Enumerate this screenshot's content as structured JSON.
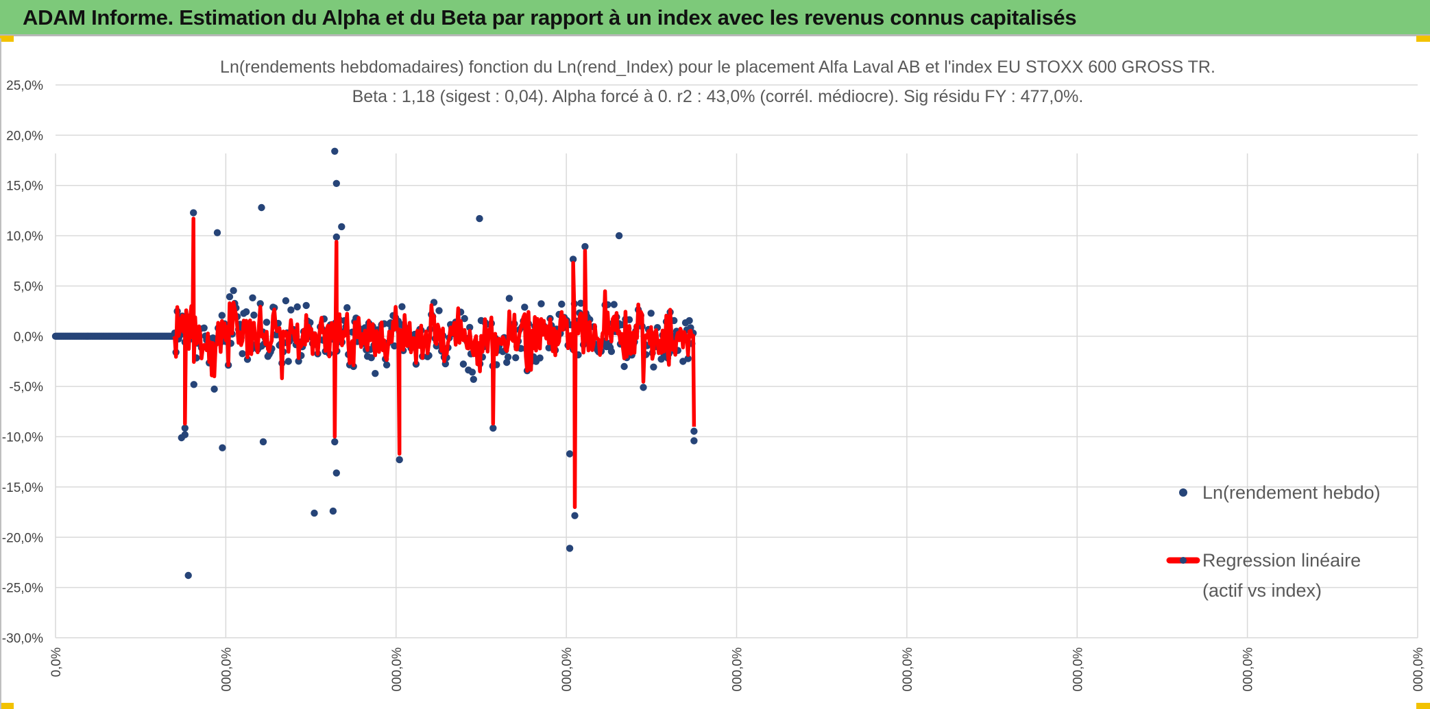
{
  "header": {
    "title": "ADAM Informe. Estimation du Alpha et du Beta par rapport à un index avec les revenus connus capitalisés",
    "accent_color": "#7dc97a",
    "corner_color": "#f2c200"
  },
  "chart_data": {
    "type": "scatter",
    "title": "Ln(rendements hebdomadaires) fonction du Ln(rend_Index) pour le placement Alfa Laval AB et l'index EU STOXX 600 GROSS TR.",
    "subtitle": "Beta : 1,18 (sigest : 0,04). Alpha forcé à 0. r2 : 43,0% (corrél. médiocre). Sig résidu FY : 477,0%.",
    "xlabel": "",
    "ylabel": "",
    "y_ticks": [
      "25,0%",
      "20,0%",
      "15,0%",
      "10,0%",
      "5,0%",
      "0,0%",
      "-5,0%",
      "-10,0%",
      "-15,0%",
      "-20,0%",
      "-25,0%",
      "-30,0%"
    ],
    "ylim": [
      -30,
      25
    ],
    "x_ticks": [
      "0,0%",
      "000,0%",
      "000,0%",
      "000,0%",
      "000,0%",
      "000,0%",
      "000,0%",
      "000,0%",
      "000,0%"
    ],
    "grid": true,
    "legend_position": "bottom-right",
    "series": [
      {
        "name": "Ln(rendement hebdo)",
        "kind": "markers",
        "color": "#264478",
        "zero_run_x_end": 0.695,
        "data_x_range": [
          0.7,
          3.75
        ],
        "spread_pct": 3.2,
        "highlighted_points": [
          {
            "x": 0.78,
            "y": -23.8
          },
          {
            "x": 1.52,
            "y": -17.6
          },
          {
            "x": 1.63,
            "y": -17.4
          },
          {
            "x": 3.02,
            "y": -21.1
          },
          {
            "x": 1.64,
            "y": 18.4
          },
          {
            "x": 1.65,
            "y": 15.2
          },
          {
            "x": 1.21,
            "y": 12.8
          },
          {
            "x": 2.49,
            "y": 11.7
          },
          {
            "x": 0.95,
            "y": 10.3
          },
          {
            "x": 3.31,
            "y": 10.0
          },
          {
            "x": 1.68,
            "y": 10.9
          },
          {
            "x": 0.98,
            "y": -11.1
          },
          {
            "x": 1.22,
            "y": -10.5
          },
          {
            "x": 1.65,
            "y": -13.6
          },
          {
            "x": 3.02,
            "y": -11.7
          },
          {
            "x": 3.75,
            "y": -10.4
          },
          {
            "x": 0.74,
            "y": -10.1
          },
          {
            "x": 0.76,
            "y": -9.8
          }
        ]
      },
      {
        "name": "Regression linéaire (actif vs index)",
        "kind": "line",
        "color": "#ff0000",
        "beta": 1.18,
        "alpha": 0,
        "highlighted_points": [
          {
            "x": 0.81,
            "y": 11.7
          },
          {
            "x": 3.05,
            "y": -17.0
          },
          {
            "x": 2.02,
            "y": -11.7
          },
          {
            "x": 1.65,
            "y": 9.4
          },
          {
            "x": 3.11,
            "y": 8.5
          },
          {
            "x": 2.57,
            "y": -8.7
          },
          {
            "x": 3.75,
            "y": -9.0
          },
          {
            "x": 0.76,
            "y": -8.7
          },
          {
            "x": 1.64,
            "y": -10.0
          },
          {
            "x": 3.04,
            "y": 7.3
          }
        ]
      }
    ],
    "legend": {
      "markers_label": "Ln(rendement hebdo)",
      "line_label_1": "Regression linéaire",
      "line_label_2": "(actif vs index)"
    }
  }
}
